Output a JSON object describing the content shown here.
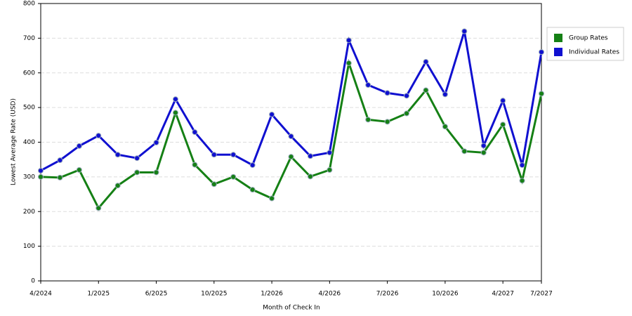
{
  "chart_data": {
    "type": "line",
    "x_label": "Month of Check In",
    "y_label": "Lowest Average Rate (USD)",
    "categories": [
      "4/2024",
      null,
      null,
      "1/2025",
      null,
      null,
      "6/2025",
      null,
      null,
      "10/2025",
      null,
      null,
      "1/2026",
      null,
      null,
      "4/2026",
      null,
      null,
      "7/2026",
      null,
      null,
      "10/2026",
      null,
      null,
      "4/2027",
      null,
      "7/2027"
    ],
    "series": [
      {
        "name": "Group Rates",
        "color": "#158015",
        "values": [
          300,
          298,
          320,
          210,
          275,
          313,
          313,
          485,
          335,
          279,
          300,
          263,
          238,
          358,
          301,
          320,
          628,
          465,
          459,
          483,
          550,
          445,
          374,
          370,
          451,
          289,
          540
        ]
      },
      {
        "name": "Individual Rates",
        "color": "#1010d0",
        "values": [
          318,
          348,
          389,
          419,
          364,
          354,
          399,
          524,
          429,
          364,
          364,
          334,
          480,
          417,
          360,
          370,
          694,
          565,
          542,
          534,
          632,
          538,
          720,
          390,
          520,
          334,
          660
        ]
      }
    ],
    "ylim": [
      0,
      800
    ],
    "yticks": [
      0,
      100,
      200,
      300,
      400,
      500,
      600,
      700,
      800
    ],
    "grid": true
  }
}
